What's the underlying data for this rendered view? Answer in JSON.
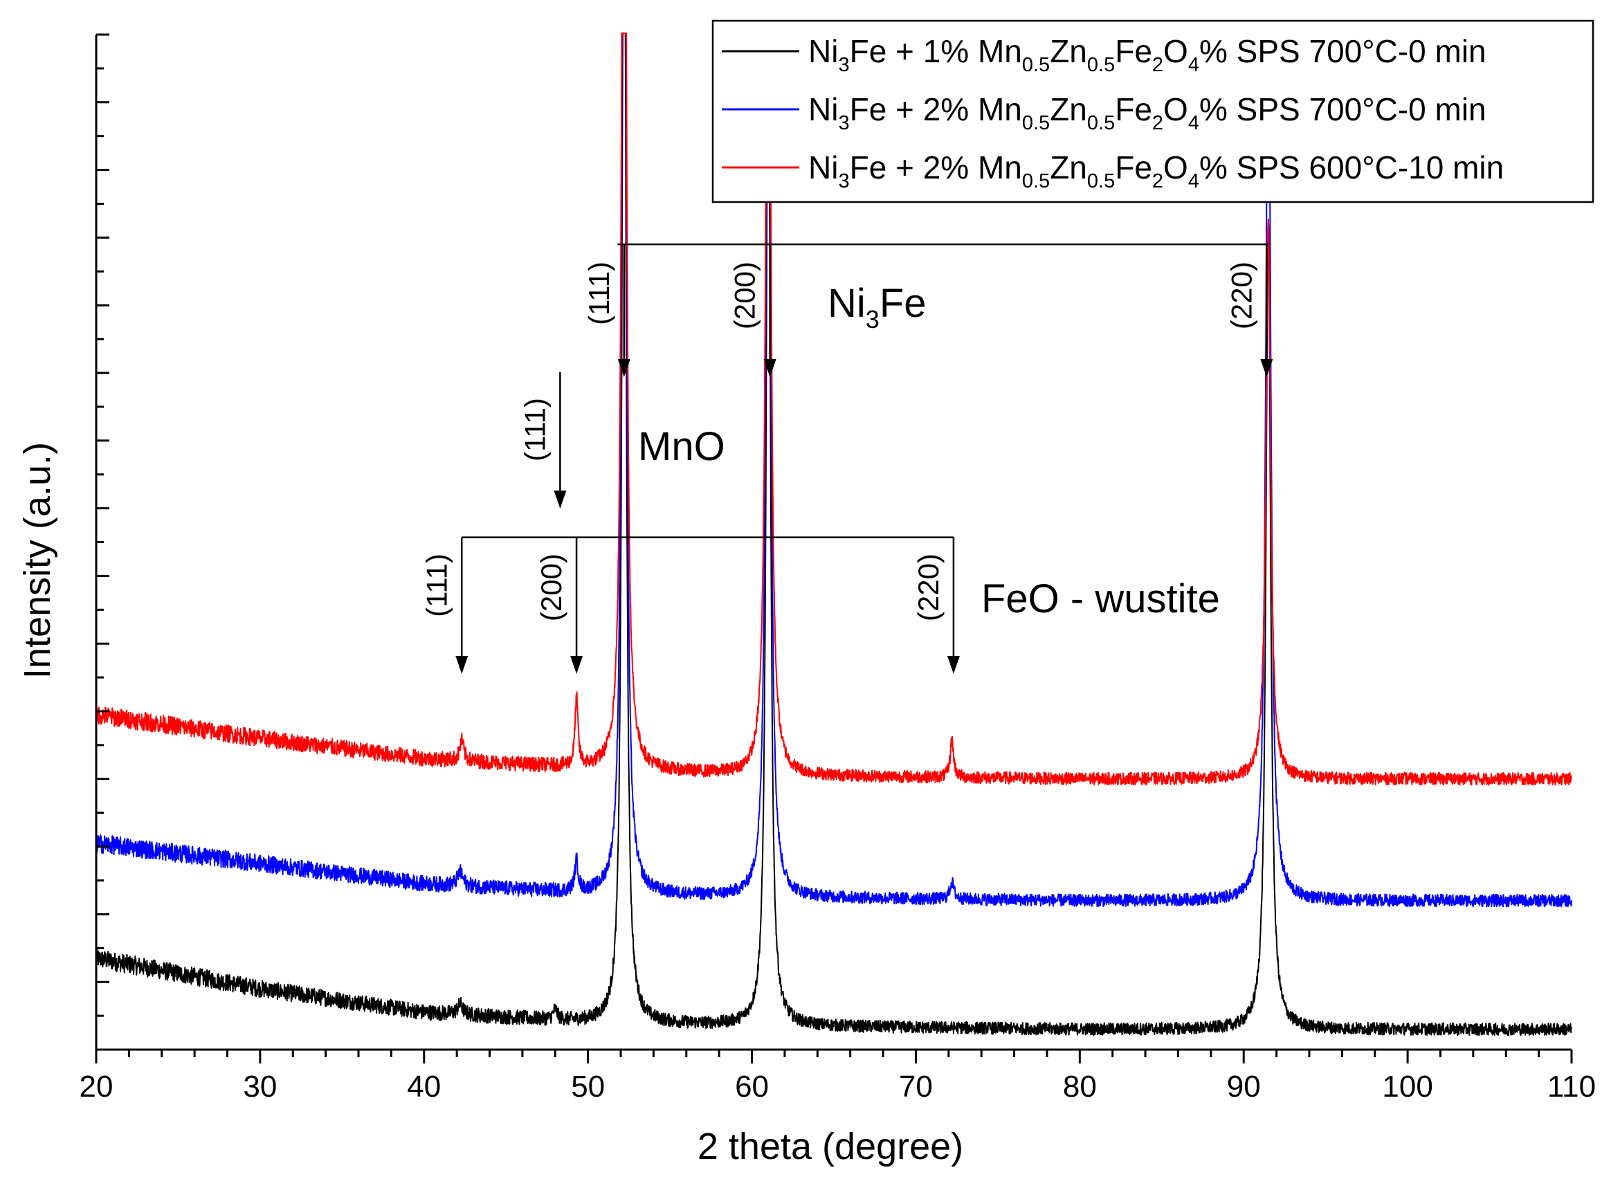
{
  "chart_data": {
    "type": "line",
    "xlabel": "2 theta (degree)",
    "ylabel": "Intensity (a.u.)",
    "xlim": [
      20,
      110
    ],
    "ylim": [
      0,
      15
    ],
    "x_ticks": [
      20,
      30,
      40,
      50,
      60,
      70,
      80,
      90,
      100,
      110
    ],
    "x_tick_labels": [
      "20",
      "30",
      "40",
      "50",
      "60",
      "70",
      "80",
      "90",
      "100",
      "110"
    ],
    "y_tick_labels_shown": false,
    "grid": false,
    "legend_position": "top-right",
    "series": [
      {
        "name_parts": [
          [
            "Ni",
            ""
          ],
          [
            "3",
            "sub"
          ],
          [
            "Fe + 1% Mn",
            ""
          ],
          [
            "0.5",
            "sub"
          ],
          [
            "Zn",
            ""
          ],
          [
            "0.5",
            "sub"
          ],
          [
            "Fe",
            ""
          ],
          [
            "2",
            "sub"
          ],
          [
            "O",
            ""
          ],
          [
            "4",
            "sub"
          ],
          [
            "% SPS 700°C-0 min",
            ""
          ]
        ],
        "color": "#000000",
        "baseline": [
          [
            20,
            1.35
          ],
          [
            30,
            0.9
          ],
          [
            40,
            0.55
          ],
          [
            50,
            0.4
          ],
          [
            60,
            0.35
          ],
          [
            80,
            0.3
          ],
          [
            110,
            0.3
          ]
        ],
        "peaks": [
          [
            42.2,
            0.15,
            0.4
          ],
          [
            48,
            0.15,
            0.3
          ],
          [
            52.2,
            20,
            0.28
          ],
          [
            61,
            16,
            0.3
          ],
          [
            91.5,
            12,
            0.35
          ]
        ]
      },
      {
        "name_parts": [
          [
            "Ni",
            ""
          ],
          [
            "3",
            "sub"
          ],
          [
            "Fe + 2% Mn",
            ""
          ],
          [
            "0.5",
            "sub"
          ],
          [
            "Zn",
            ""
          ],
          [
            "0.5",
            "sub"
          ],
          [
            "Fe",
            ""
          ],
          [
            "2",
            "sub"
          ],
          [
            "O",
            ""
          ],
          [
            "4",
            "sub"
          ],
          [
            "% SPS 700°C-0 min",
            ""
          ]
        ],
        "color": "#0000ff",
        "baseline": [
          [
            20,
            3.05
          ],
          [
            30,
            2.75
          ],
          [
            40,
            2.45
          ],
          [
            50,
            2.3
          ],
          [
            60,
            2.25
          ],
          [
            80,
            2.2
          ],
          [
            110,
            2.2
          ]
        ],
        "peaks": [
          [
            42.2,
            0.2,
            0.4
          ],
          [
            49.3,
            0.45,
            0.25
          ],
          [
            52.2,
            22,
            0.28
          ],
          [
            61,
            18,
            0.3
          ],
          [
            72.2,
            0.25,
            0.3
          ],
          [
            91.5,
            14,
            0.35
          ]
        ]
      },
      {
        "name_parts": [
          [
            "Ni",
            ""
          ],
          [
            "3",
            "sub"
          ],
          [
            "Fe + 2% Mn",
            ""
          ],
          [
            "0.5",
            "sub"
          ],
          [
            "Zn",
            ""
          ],
          [
            "0.5",
            "sub"
          ],
          [
            "Fe",
            ""
          ],
          [
            "2",
            "sub"
          ],
          [
            "O",
            ""
          ],
          [
            "4",
            "sub"
          ],
          [
            "% SPS 600°C-10 min",
            ""
          ]
        ],
        "color": "#ff0000",
        "baseline": [
          [
            20,
            4.95
          ],
          [
            30,
            4.6
          ],
          [
            40,
            4.3
          ],
          [
            50,
            4.15
          ],
          [
            60,
            4.05
          ],
          [
            80,
            4.0
          ],
          [
            110,
            4.0
          ]
        ],
        "peaks": [
          [
            42.3,
            0.3,
            0.3
          ],
          [
            49.3,
            1.0,
            0.22
          ],
          [
            52.2,
            22,
            0.28
          ],
          [
            61,
            18,
            0.3
          ],
          [
            72.2,
            0.55,
            0.25
          ],
          [
            91.5,
            8.2,
            0.35
          ]
        ]
      }
    ],
    "annotations": {
      "ni3fe": {
        "label_parts": [
          [
            "Ni",
            ""
          ],
          [
            "3",
            "sub"
          ],
          [
            "Fe",
            ""
          ]
        ],
        "bar_y": 11.9,
        "bar_x": [
          51.8,
          91.5
        ],
        "peaks": [
          {
            "label": "(111)",
            "x": 52.2
          },
          {
            "label": "(200)",
            "x": 61.1
          },
          {
            "label": "(220)",
            "x": 91.4
          }
        ]
      },
      "mno": {
        "label": "MnO",
        "peak": {
          "label": "(111)",
          "x": 48.3
        }
      },
      "feo": {
        "label": "FeO - wustite",
        "bar_y": 7.57,
        "bar_x": [
          42.3,
          72.3
        ],
        "peaks": [
          {
            "label": "(111)",
            "x": 42.3
          },
          {
            "label": "(200)",
            "x": 49.3
          },
          {
            "label": "(220)",
            "x": 72.3
          }
        ]
      }
    }
  }
}
